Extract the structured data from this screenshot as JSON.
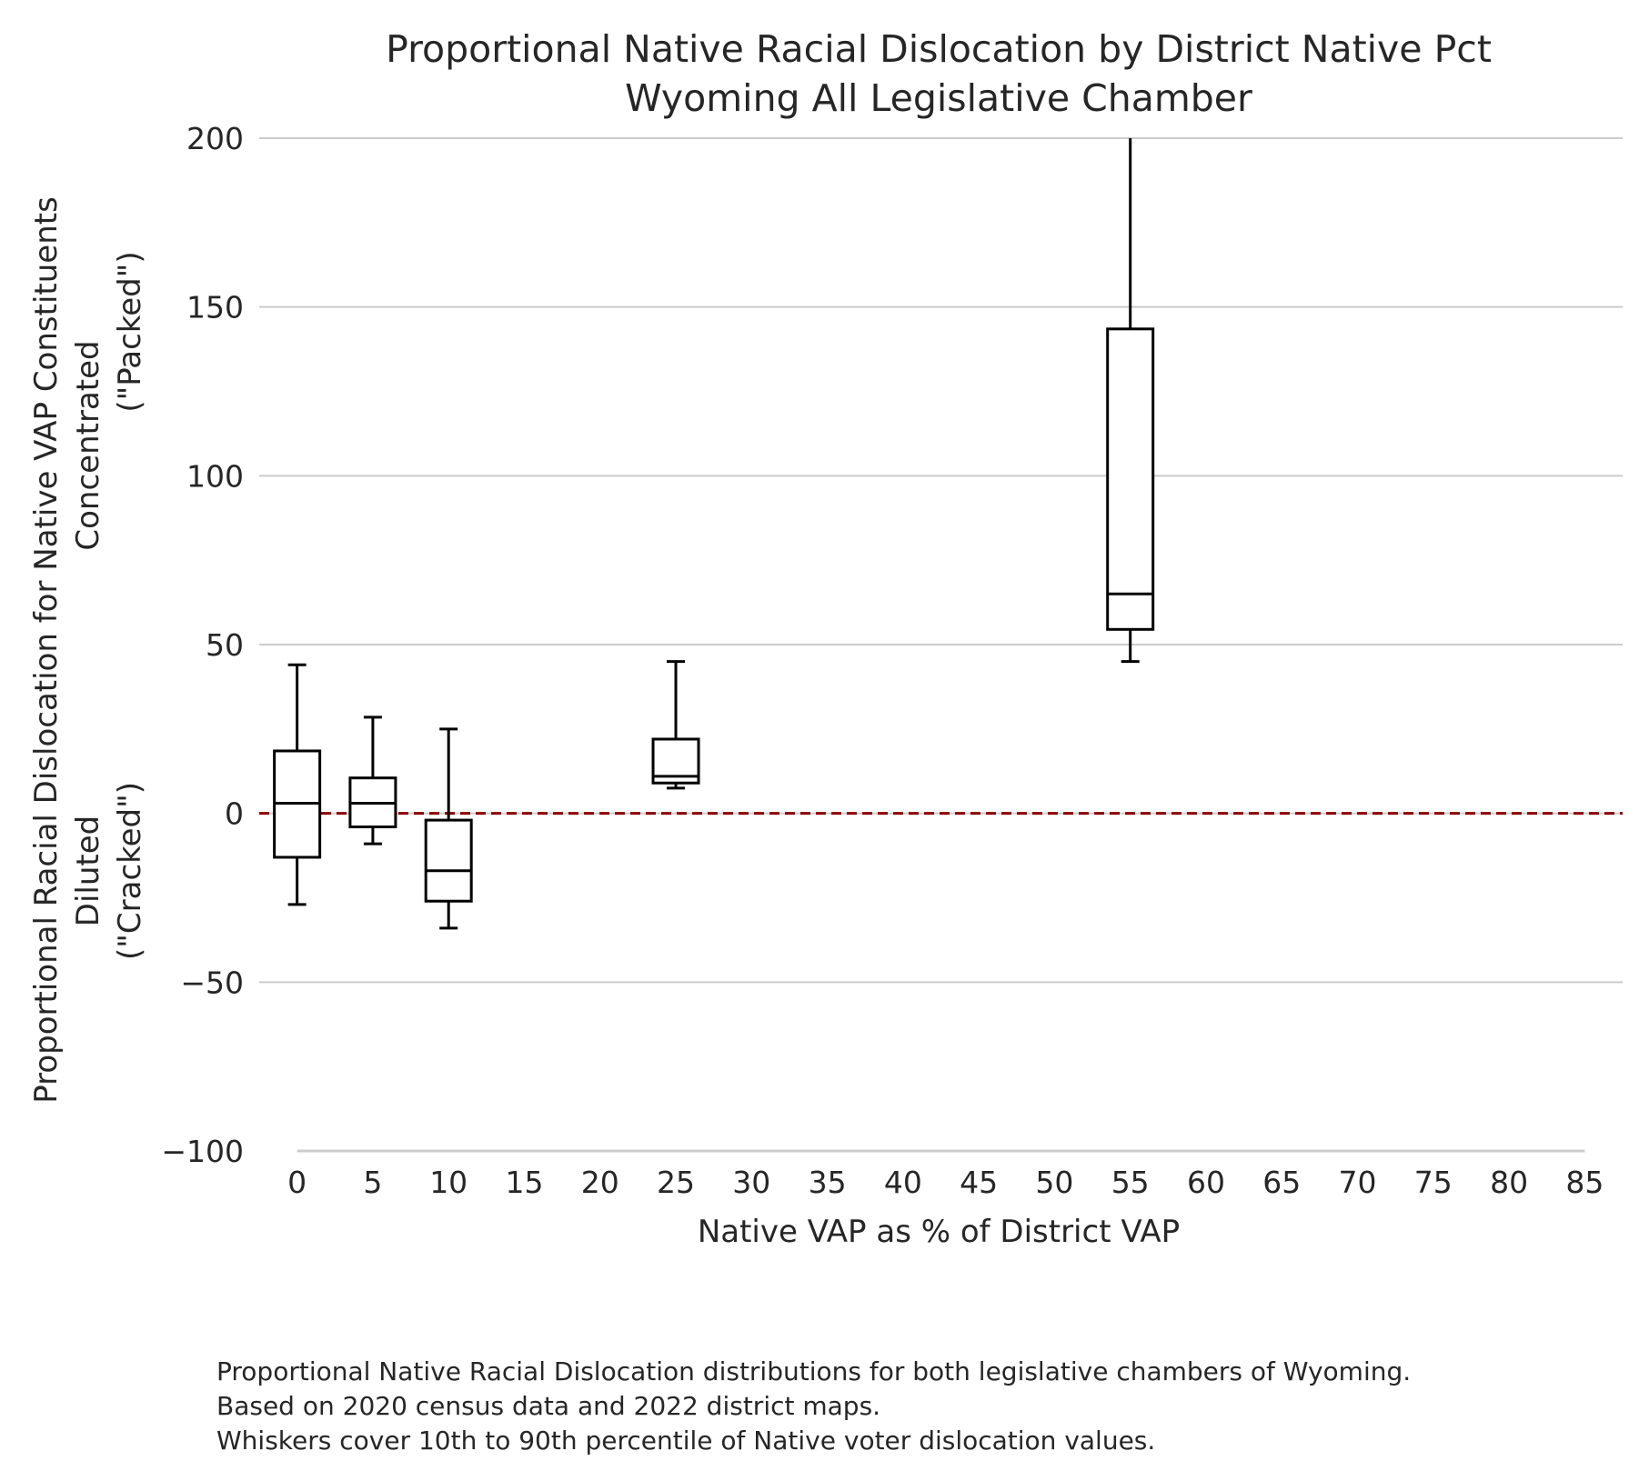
{
  "chart_data": {
    "type": "box",
    "title": [
      "Proportional Native Racial Dislocation by District Native Pct",
      "Wyoming All Legislative Chamber"
    ],
    "xlabel": "Native VAP as % of District VAP",
    "ylabel": [
      "Proportional Racial Dislocation for Native VAP Constituents",
      "Concentrated",
      "(\"Packed\")",
      "Diluted",
      "(\"Cracked\")"
    ],
    "x_ticks": [
      0,
      5,
      10,
      15,
      20,
      25,
      30,
      35,
      40,
      45,
      50,
      55,
      60,
      65,
      70,
      75,
      80,
      85
    ],
    "y_ticks": [
      -100,
      -50,
      0,
      50,
      100,
      150,
      200
    ],
    "xlim": [
      -2.5,
      87.5
    ],
    "ylim": [
      -100,
      200
    ],
    "grid": "horizontal",
    "reference_line": {
      "y": 0,
      "style": "dashed",
      "color": "#8b0000"
    },
    "boxes": [
      {
        "x": 0,
        "whisker_low": -27,
        "q1": -13,
        "median": 3,
        "q3": 18.5,
        "whisker_high": 44
      },
      {
        "x": 5,
        "whisker_low": -9,
        "q1": -4,
        "median": 3,
        "q3": 10.5,
        "whisker_high": 28.5
      },
      {
        "x": 10,
        "whisker_low": -34,
        "q1": -26,
        "median": -17,
        "q3": -2,
        "whisker_high": 25
      },
      {
        "x": 25,
        "whisker_low": 7.5,
        "q1": 9,
        "median": 11,
        "q3": 22,
        "whisker_high": 45
      },
      {
        "x": 55,
        "whisker_low": 45,
        "q1": 54.5,
        "median": 65,
        "q3": 143.5,
        "whisker_high": 200
      }
    ],
    "colors": {
      "box": "#000000",
      "grid": "#cccccc",
      "reference": "#8b0000"
    }
  },
  "caption": [
    "Proportional Native Racial Dislocation distributions for both legislative chambers of Wyoming.",
    "Based on 2020 census data and 2022 district maps.",
    "Whiskers cover 10th to 90th percentile of Native voter dislocation values."
  ]
}
